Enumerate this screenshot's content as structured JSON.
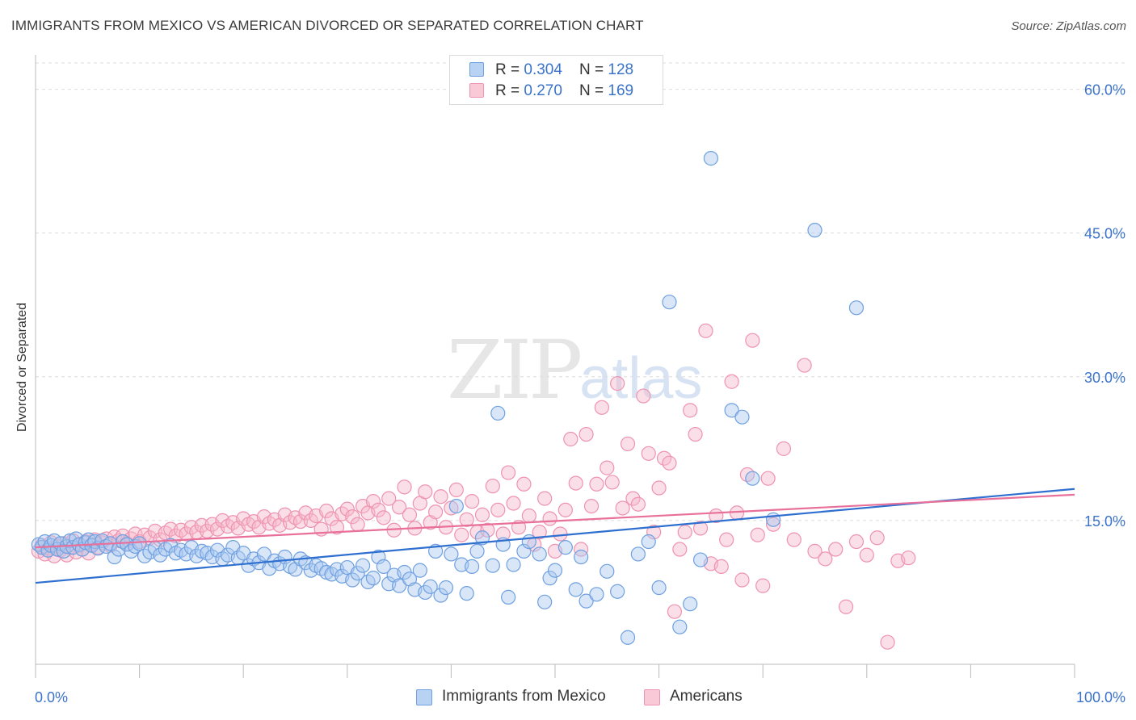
{
  "header": {
    "title": "IMMIGRANTS FROM MEXICO VS AMERICAN DIVORCED OR SEPARATED CORRELATION CHART",
    "source": "Source: ZipAtlas.com"
  },
  "watermark": {
    "zip": "ZIP",
    "atlas": "atlas"
  },
  "legend": {
    "rows": [
      {
        "r_label": "R = ",
        "r_value": "0.304",
        "n_label": "N = ",
        "n_value": "128"
      },
      {
        "r_label": "R = ",
        "r_value": "0.270",
        "n_label": "N = ",
        "n_value": "169"
      }
    ]
  },
  "chart_data": {
    "type": "scatter",
    "title": "IMMIGRANTS FROM MEXICO VS AMERICAN DIVORCED OR SEPARATED CORRELATION CHART",
    "xlabel": "",
    "ylabel": "Divorced or Separated",
    "xlim": [
      0,
      100
    ],
    "ylim": [
      0,
      63
    ],
    "x_tick_labels": [
      "0.0%",
      "100.0%"
    ],
    "y_ticks": [
      15,
      30,
      45,
      60
    ],
    "y_tick_labels": [
      "15.0%",
      "30.0%",
      "45.0%",
      "60.0%"
    ],
    "grid": "horizontal dashed",
    "legend_position": "top-center",
    "colors": {
      "mexico_fill": "#a9c8f0",
      "mexico_stroke": "#6fa0e0",
      "mexico_line": "#2f6fd0",
      "americans_fill": "#f7b9cc",
      "americans_stroke": "#ee93b0",
      "americans_line": "#e8709a",
      "tick_text": "#3a73c9"
    },
    "series": [
      {
        "name": "Immigrants from Mexico",
        "r": 0.304,
        "n": 128,
        "trend": {
          "x": [
            0,
            100
          ],
          "y": [
            8.5,
            18.3
          ]
        },
        "points": [
          [
            0.3,
            12.5
          ],
          [
            0.6,
            12.2
          ],
          [
            0.9,
            12.8
          ],
          [
            1.2,
            11.9
          ],
          [
            1.5,
            12.4
          ],
          [
            1.8,
            12.9
          ],
          [
            2.1,
            12.0
          ],
          [
            2.4,
            12.6
          ],
          [
            2.7,
            11.8
          ],
          [
            3.0,
            12.3
          ],
          [
            3.3,
            12.9
          ],
          [
            3.6,
            12.2
          ],
          [
            3.9,
            13.1
          ],
          [
            4.2,
            12.5
          ],
          [
            4.5,
            12.0
          ],
          [
            4.8,
            12.7
          ],
          [
            5.1,
            13.0
          ],
          [
            5.4,
            12.4
          ],
          [
            5.7,
            12.8
          ],
          [
            6.0,
            12.1
          ],
          [
            6.4,
            12.9
          ],
          [
            6.8,
            12.3
          ],
          [
            7.2,
            12.6
          ],
          [
            7.6,
            11.2
          ],
          [
            8.0,
            12.0
          ],
          [
            8.4,
            12.8
          ],
          [
            8.8,
            12.5
          ],
          [
            9.2,
            11.8
          ],
          [
            9.6,
            12.3
          ],
          [
            10.0,
            12.6
          ],
          [
            10.5,
            11.3
          ],
          [
            11.0,
            11.7
          ],
          [
            11.5,
            12.1
          ],
          [
            12.0,
            11.4
          ],
          [
            12.5,
            12.0
          ],
          [
            13.0,
            12.4
          ],
          [
            13.5,
            11.6
          ],
          [
            14.0,
            11.9
          ],
          [
            14.5,
            11.5
          ],
          [
            15.0,
            12.2
          ],
          [
            15.5,
            11.3
          ],
          [
            16.0,
            11.8
          ],
          [
            16.5,
            11.6
          ],
          [
            17.0,
            11.2
          ],
          [
            17.5,
            11.9
          ],
          [
            18.0,
            11.0
          ],
          [
            18.5,
            11.4
          ],
          [
            19.0,
            12.2
          ],
          [
            19.5,
            11.1
          ],
          [
            20.0,
            11.6
          ],
          [
            20.5,
            10.3
          ],
          [
            21.0,
            11.0
          ],
          [
            21.5,
            10.6
          ],
          [
            22.0,
            11.5
          ],
          [
            22.5,
            10.0
          ],
          [
            23.0,
            10.8
          ],
          [
            23.5,
            10.5
          ],
          [
            24.0,
            11.2
          ],
          [
            24.5,
            10.2
          ],
          [
            25.0,
            9.9
          ],
          [
            25.5,
            11.0
          ],
          [
            26.0,
            10.6
          ],
          [
            26.5,
            9.8
          ],
          [
            27.0,
            10.3
          ],
          [
            27.5,
            10.0
          ],
          [
            28.0,
            9.6
          ],
          [
            28.5,
            9.4
          ],
          [
            29.0,
            9.9
          ],
          [
            29.5,
            9.2
          ],
          [
            30.0,
            10.1
          ],
          [
            30.5,
            8.8
          ],
          [
            31.0,
            9.5
          ],
          [
            31.5,
            10.3
          ],
          [
            32.0,
            8.6
          ],
          [
            32.5,
            9.0
          ],
          [
            33.0,
            11.2
          ],
          [
            33.5,
            10.2
          ],
          [
            34.0,
            8.4
          ],
          [
            34.5,
            9.3
          ],
          [
            35.0,
            8.2
          ],
          [
            35.5,
            9.6
          ],
          [
            36.0,
            8.9
          ],
          [
            36.5,
            7.8
          ],
          [
            37.0,
            9.8
          ],
          [
            37.5,
            7.5
          ],
          [
            38.0,
            8.1
          ],
          [
            38.5,
            11.8
          ],
          [
            39.0,
            7.2
          ],
          [
            39.5,
            8.0
          ],
          [
            40.0,
            11.5
          ],
          [
            40.5,
            16.5
          ],
          [
            41.0,
            10.4
          ],
          [
            41.5,
            7.4
          ],
          [
            42.0,
            10.2
          ],
          [
            42.5,
            11.8
          ],
          [
            43.0,
            13.2
          ],
          [
            44.0,
            10.3
          ],
          [
            44.5,
            26.2
          ],
          [
            45.0,
            12.5
          ],
          [
            45.5,
            7.0
          ],
          [
            46.0,
            10.4
          ],
          [
            47.0,
            11.8
          ],
          [
            47.5,
            12.8
          ],
          [
            48.5,
            11.5
          ],
          [
            49.0,
            6.5
          ],
          [
            49.5,
            9.0
          ],
          [
            50.0,
            9.8
          ],
          [
            51.0,
            12.2
          ],
          [
            52.0,
            7.8
          ],
          [
            52.5,
            11.2
          ],
          [
            53.0,
            6.6
          ],
          [
            54.0,
            7.3
          ],
          [
            55.0,
            9.7
          ],
          [
            56.0,
            7.6
          ],
          [
            57.0,
            2.8
          ],
          [
            58.0,
            11.5
          ],
          [
            59.0,
            12.8
          ],
          [
            60.0,
            8.0
          ],
          [
            61.0,
            37.8
          ],
          [
            62.0,
            3.9
          ],
          [
            63.0,
            6.3
          ],
          [
            64.0,
            10.9
          ],
          [
            65.0,
            52.8
          ],
          [
            67.0,
            26.5
          ],
          [
            68.0,
            25.8
          ],
          [
            69.0,
            19.4
          ],
          [
            71.0,
            15.1
          ],
          [
            75.0,
            45.3
          ],
          [
            79.0,
            37.2
          ]
        ]
      },
      {
        "name": "Americans",
        "r": 0.27,
        "n": 169,
        "trend": {
          "x": [
            0,
            100
          ],
          "y": [
            12.2,
            17.7
          ]
        },
        "points": [
          [
            0.3,
            11.8
          ],
          [
            0.6,
            12.4
          ],
          [
            0.9,
            11.5
          ],
          [
            1.2,
            12.1
          ],
          [
            1.5,
            12.7
          ],
          [
            1.8,
            11.3
          ],
          [
            2.1,
            12.3
          ],
          [
            2.4,
            11.9
          ],
          [
            2.7,
            12.6
          ],
          [
            3.0,
            11.4
          ],
          [
            3.3,
            12.2
          ],
          [
            3.6,
            12.9
          ],
          [
            3.9,
            11.7
          ],
          [
            4.2,
            12.4
          ],
          [
            4.5,
            12.0
          ],
          [
            4.8,
            12.8
          ],
          [
            5.1,
            11.6
          ],
          [
            5.4,
            12.5
          ],
          [
            5.7,
            13.0
          ],
          [
            6.0,
            12.2
          ],
          [
            6.4,
            12.7
          ],
          [
            6.8,
            13.1
          ],
          [
            7.2,
            12.4
          ],
          [
            7.6,
            13.3
          ],
          [
            8.0,
            12.9
          ],
          [
            8.4,
            13.4
          ],
          [
            8.8,
            12.6
          ],
          [
            9.2,
            13.1
          ],
          [
            9.6,
            13.6
          ],
          [
            10.0,
            12.8
          ],
          [
            10.5,
            13.5
          ],
          [
            11.0,
            13.2
          ],
          [
            11.5,
            13.9
          ],
          [
            12.0,
            13.0
          ],
          [
            12.5,
            13.7
          ],
          [
            13.0,
            14.1
          ],
          [
            13.5,
            13.4
          ],
          [
            14.0,
            14.0
          ],
          [
            14.5,
            13.6
          ],
          [
            15.0,
            14.3
          ],
          [
            15.5,
            13.8
          ],
          [
            16.0,
            14.5
          ],
          [
            16.5,
            13.9
          ],
          [
            17.0,
            14.6
          ],
          [
            17.5,
            14.1
          ],
          [
            18.0,
            15.0
          ],
          [
            18.5,
            14.4
          ],
          [
            19.0,
            14.8
          ],
          [
            19.5,
            14.2
          ],
          [
            20.0,
            15.2
          ],
          [
            20.5,
            14.6
          ],
          [
            21.0,
            14.9
          ],
          [
            21.5,
            14.3
          ],
          [
            22.0,
            15.4
          ],
          [
            22.5,
            14.7
          ],
          [
            23.0,
            15.1
          ],
          [
            23.5,
            14.5
          ],
          [
            24.0,
            15.6
          ],
          [
            24.5,
            14.8
          ],
          [
            25.0,
            15.3
          ],
          [
            25.5,
            14.9
          ],
          [
            26.0,
            15.8
          ],
          [
            26.5,
            15.0
          ],
          [
            27.0,
            15.5
          ],
          [
            27.5,
            14.1
          ],
          [
            28.0,
            16.0
          ],
          [
            28.5,
            15.2
          ],
          [
            29.0,
            14.3
          ],
          [
            29.5,
            15.7
          ],
          [
            30.0,
            16.2
          ],
          [
            30.5,
            15.4
          ],
          [
            31.0,
            14.6
          ],
          [
            31.5,
            16.5
          ],
          [
            32.0,
            15.8
          ],
          [
            32.5,
            17.0
          ],
          [
            33.0,
            16.1
          ],
          [
            33.5,
            15.3
          ],
          [
            34.0,
            17.3
          ],
          [
            34.5,
            14.0
          ],
          [
            35.0,
            16.4
          ],
          [
            35.5,
            18.5
          ],
          [
            36.0,
            15.6
          ],
          [
            36.5,
            14.2
          ],
          [
            37.0,
            16.8
          ],
          [
            37.5,
            18.0
          ],
          [
            38.0,
            14.8
          ],
          [
            38.5,
            15.9
          ],
          [
            39.0,
            17.5
          ],
          [
            39.5,
            14.3
          ],
          [
            40.0,
            16.3
          ],
          [
            40.5,
            18.2
          ],
          [
            41.0,
            13.5
          ],
          [
            41.5,
            15.1
          ],
          [
            42.0,
            17.0
          ],
          [
            42.5,
            13.8
          ],
          [
            43.0,
            15.6
          ],
          [
            43.5,
            14.0
          ],
          [
            44.0,
            18.6
          ],
          [
            44.5,
            16.1
          ],
          [
            45.0,
            13.6
          ],
          [
            45.5,
            20.0
          ],
          [
            46.0,
            16.8
          ],
          [
            46.5,
            14.3
          ],
          [
            47.0,
            18.8
          ],
          [
            47.5,
            15.5
          ],
          [
            48.0,
            12.5
          ],
          [
            48.5,
            13.8
          ],
          [
            49.0,
            17.3
          ],
          [
            49.5,
            15.2
          ],
          [
            50.0,
            11.8
          ],
          [
            50.5,
            13.6
          ],
          [
            51.0,
            16.1
          ],
          [
            51.5,
            23.5
          ],
          [
            52.0,
            18.9
          ],
          [
            52.5,
            12.0
          ],
          [
            53.0,
            24.0
          ],
          [
            53.5,
            16.5
          ],
          [
            54.0,
            18.8
          ],
          [
            54.5,
            26.8
          ],
          [
            55.0,
            20.5
          ],
          [
            55.5,
            19.0
          ],
          [
            56.0,
            29.3
          ],
          [
            56.5,
            16.3
          ],
          [
            57.0,
            23.0
          ],
          [
            57.5,
            17.3
          ],
          [
            58.0,
            16.7
          ],
          [
            58.5,
            28.0
          ],
          [
            59.0,
            22.0
          ],
          [
            59.5,
            13.8
          ],
          [
            60.0,
            18.4
          ],
          [
            60.5,
            21.5
          ],
          [
            61.0,
            21.0
          ],
          [
            61.5,
            5.5
          ],
          [
            62.0,
            12.0
          ],
          [
            62.5,
            13.8
          ],
          [
            63.0,
            26.5
          ],
          [
            63.5,
            24.0
          ],
          [
            64.0,
            14.2
          ],
          [
            64.5,
            34.8
          ],
          [
            65.0,
            10.5
          ],
          [
            65.5,
            15.5
          ],
          [
            66.0,
            10.2
          ],
          [
            66.5,
            13.0
          ],
          [
            67.0,
            29.5
          ],
          [
            67.5,
            15.8
          ],
          [
            68.0,
            8.8
          ],
          [
            68.5,
            19.8
          ],
          [
            69.0,
            33.8
          ],
          [
            69.5,
            13.5
          ],
          [
            70.0,
            8.2
          ],
          [
            70.5,
            19.4
          ],
          [
            71.0,
            14.6
          ],
          [
            72.0,
            22.5
          ],
          [
            73.0,
            13.0
          ],
          [
            74.0,
            31.2
          ],
          [
            75.0,
            11.8
          ],
          [
            76.0,
            11.0
          ],
          [
            77.0,
            12.0
          ],
          [
            78.0,
            6.0
          ],
          [
            79.0,
            12.8
          ],
          [
            80.0,
            11.4
          ],
          [
            81.0,
            13.2
          ],
          [
            82.0,
            2.3
          ],
          [
            83.0,
            10.8
          ],
          [
            84.0,
            11.1
          ]
        ]
      }
    ]
  },
  "bottom_legend": {
    "items": [
      "Immigrants from Mexico",
      "Americans"
    ]
  }
}
